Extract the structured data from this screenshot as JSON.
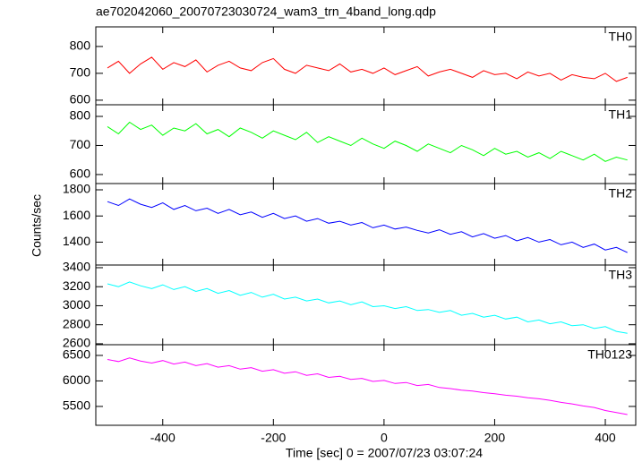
{
  "title": "ae702042060_20070723030724_wam3_trn_4band_long.qdp",
  "xlabel": "Time [sec] 0 = 2007/07/23 03:07:24",
  "ylabel": "Counts/sec",
  "chart_data": [
    {
      "type": "line",
      "xlim": [
        -521,
        455
      ],
      "xticks": [
        -400,
        -200,
        0,
        200,
        400
      ],
      "ylim": [
        583,
        873
      ],
      "yticks": [
        600,
        700,
        800
      ],
      "x": [
        -500,
        -480,
        -460,
        -440,
        -420,
        -400,
        -380,
        -360,
        -340,
        -320,
        -300,
        -280,
        -260,
        -240,
        -220,
        -200,
        -180,
        -160,
        -140,
        -120,
        -100,
        -80,
        -60,
        -40,
        -20,
        0,
        20,
        40,
        60,
        80,
        100,
        120,
        140,
        160,
        180,
        200,
        220,
        240,
        260,
        280,
        300,
        320,
        340,
        360,
        380,
        400,
        420,
        440
      ],
      "series": [
        {
          "name": "TH0",
          "color": "#ff0000",
          "values": [
            720,
            745,
            700,
            735,
            760,
            715,
            740,
            725,
            750,
            705,
            730,
            745,
            720,
            710,
            740,
            755,
            715,
            700,
            730,
            720,
            710,
            735,
            705,
            715,
            700,
            720,
            695,
            710,
            725,
            690,
            705,
            715,
            700,
            685,
            710,
            695,
            700,
            680,
            705,
            690,
            700,
            675,
            695,
            685,
            680,
            700,
            670,
            685
          ]
        }
      ]
    },
    {
      "type": "line",
      "xlim": [
        -521,
        455
      ],
      "xticks": [
        -400,
        -200,
        0,
        200,
        400
      ],
      "ylim": [
        569,
        840
      ],
      "yticks": [
        600,
        700,
        800
      ],
      "x": [
        -500,
        -480,
        -460,
        -440,
        -420,
        -400,
        -380,
        -360,
        -340,
        -320,
        -300,
        -280,
        -260,
        -240,
        -220,
        -200,
        -180,
        -160,
        -140,
        -120,
        -100,
        -80,
        -60,
        -40,
        -20,
        0,
        20,
        40,
        60,
        80,
        100,
        120,
        140,
        160,
        180,
        200,
        220,
        240,
        260,
        280,
        300,
        320,
        340,
        360,
        380,
        400,
        420,
        440
      ],
      "series": [
        {
          "name": "TH1",
          "color": "#00ff00",
          "values": [
            765,
            740,
            780,
            755,
            770,
            735,
            760,
            750,
            775,
            740,
            755,
            730,
            760,
            745,
            725,
            750,
            735,
            720,
            745,
            710,
            730,
            715,
            700,
            725,
            705,
            690,
            715,
            700,
            680,
            705,
            690,
            675,
            700,
            685,
            665,
            690,
            670,
            680,
            660,
            675,
            655,
            680,
            665,
            650,
            670,
            645,
            660,
            650
          ]
        }
      ]
    },
    {
      "type": "line",
      "xlim": [
        -521,
        455
      ],
      "xticks": [
        -400,
        -200,
        0,
        200,
        400
      ],
      "ylim": [
        1225,
        1848
      ],
      "yticks": [
        1400,
        1600,
        1800
      ],
      "x": [
        -500,
        -480,
        -460,
        -440,
        -420,
        -400,
        -380,
        -360,
        -340,
        -320,
        -300,
        -280,
        -260,
        -240,
        -220,
        -200,
        -180,
        -160,
        -140,
        -120,
        -100,
        -80,
        -60,
        -40,
        -20,
        0,
        20,
        40,
        60,
        80,
        100,
        120,
        140,
        160,
        180,
        200,
        220,
        240,
        260,
        280,
        300,
        320,
        340,
        360,
        380,
        400,
        420,
        440
      ],
      "series": [
        {
          "name": "TH2",
          "color": "#0000ff",
          "values": [
            1710,
            1680,
            1730,
            1690,
            1665,
            1700,
            1650,
            1680,
            1640,
            1660,
            1620,
            1650,
            1610,
            1630,
            1590,
            1620,
            1580,
            1600,
            1560,
            1580,
            1545,
            1560,
            1530,
            1550,
            1510,
            1530,
            1500,
            1515,
            1490,
            1470,
            1495,
            1460,
            1480,
            1440,
            1465,
            1430,
            1450,
            1410,
            1435,
            1400,
            1420,
            1380,
            1400,
            1360,
            1385,
            1340,
            1360,
            1320
          ]
        }
      ]
    },
    {
      "type": "line",
      "xlim": [
        -521,
        455
      ],
      "xticks": [
        -400,
        -200,
        0,
        200,
        400
      ],
      "ylim": [
        2590,
        3428
      ],
      "yticks": [
        2600,
        2800,
        3000,
        3200,
        3400
      ],
      "x": [
        -500,
        -480,
        -460,
        -440,
        -420,
        -400,
        -380,
        -360,
        -340,
        -320,
        -300,
        -280,
        -260,
        -240,
        -220,
        -200,
        -180,
        -160,
        -140,
        -120,
        -100,
        -80,
        -60,
        -40,
        -20,
        0,
        20,
        40,
        60,
        80,
        100,
        120,
        140,
        160,
        180,
        200,
        220,
        240,
        260,
        280,
        300,
        320,
        340,
        360,
        380,
        400,
        420,
        440
      ],
      "series": [
        {
          "name": "TH3",
          "color": "#00ffff",
          "values": [
            3230,
            3200,
            3250,
            3210,
            3180,
            3220,
            3170,
            3200,
            3150,
            3180,
            3130,
            3160,
            3110,
            3140,
            3090,
            3120,
            3070,
            3090,
            3050,
            3070,
            3030,
            3050,
            3010,
            3040,
            2990,
            3000,
            2970,
            2990,
            2950,
            2960,
            2930,
            2950,
            2900,
            2920,
            2880,
            2900,
            2860,
            2880,
            2830,
            2850,
            2810,
            2830,
            2790,
            2800,
            2760,
            2780,
            2730,
            2710
          ]
        }
      ]
    },
    {
      "type": "line",
      "xlim": [
        -521,
        455
      ],
      "xticks": [
        -400,
        -200,
        0,
        200,
        400
      ],
      "ylim": [
        5130,
        6710
      ],
      "yticks": [
        5500,
        6000,
        6500
      ],
      "x": [
        -500,
        -480,
        -460,
        -440,
        -420,
        -400,
        -380,
        -360,
        -340,
        -320,
        -300,
        -280,
        -260,
        -240,
        -220,
        -200,
        -180,
        -160,
        -140,
        -120,
        -100,
        -80,
        -60,
        -40,
        -20,
        0,
        20,
        40,
        60,
        80,
        100,
        120,
        140,
        160,
        180,
        200,
        220,
        240,
        260,
        280,
        300,
        320,
        340,
        360,
        380,
        400,
        420,
        440
      ],
      "series": [
        {
          "name": "TH0123",
          "color": "#ff00ff",
          "values": [
            6420,
            6380,
            6450,
            6390,
            6350,
            6400,
            6330,
            6370,
            6300,
            6340,
            6270,
            6300,
            6230,
            6260,
            6190,
            6220,
            6150,
            6180,
            6110,
            6140,
            6070,
            6090,
            6030,
            6050,
            5990,
            6010,
            5950,
            5970,
            5910,
            5930,
            5870,
            5850,
            5820,
            5800,
            5770,
            5750,
            5720,
            5700,
            5670,
            5650,
            5620,
            5580,
            5550,
            5510,
            5480,
            5420,
            5380,
            5340
          ]
        }
      ]
    }
  ]
}
